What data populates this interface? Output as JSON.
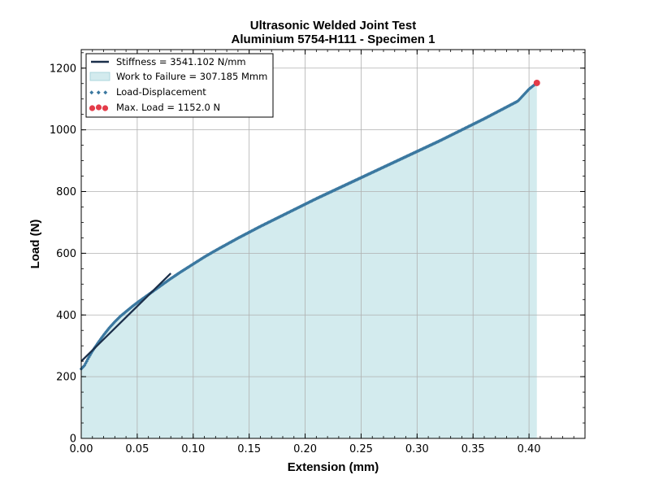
{
  "chart_data": {
    "type": "line",
    "title": "Ultrasonic Welded Joint Test",
    "subtitle": "Aluminium 5754-H111 - Specimen 1",
    "xlabel": "Extension (mm)",
    "ylabel": "Load (N)",
    "xlim": [
      0.0,
      0.45
    ],
    "ylim": [
      0,
      1260
    ],
    "xticks": [
      0.0,
      0.05,
      0.1,
      0.15,
      0.2,
      0.25,
      0.3,
      0.35,
      0.4
    ],
    "xtick_labels": [
      "0.00",
      "0.05",
      "0.10",
      "0.15",
      "0.20",
      "0.25",
      "0.30",
      "0.35",
      "0.40"
    ],
    "yticks": [
      0,
      200,
      400,
      600,
      800,
      1000,
      1200
    ],
    "ytick_labels": [
      "0",
      "200",
      "400",
      "600",
      "800",
      "1000",
      "1200"
    ],
    "grid": true,
    "legend_position": "top-left",
    "legend": [
      {
        "label": "Stiffness = 3541.102 N/mm",
        "kind": "line"
      },
      {
        "label": "Work to Failure = 307.185 Mmm",
        "kind": "area"
      },
      {
        "label": "Load-Displacement",
        "kind": "markers"
      },
      {
        "label": "Max. Load = 1152.0 N",
        "kind": "point"
      }
    ],
    "series": [
      {
        "name": "Load-Displacement",
        "x": [
          0.0,
          0.003,
          0.006,
          0.01,
          0.015,
          0.02,
          0.025,
          0.03,
          0.035,
          0.04,
          0.045,
          0.05,
          0.06,
          0.07,
          0.08,
          0.09,
          0.1,
          0.11,
          0.12,
          0.13,
          0.14,
          0.15,
          0.16,
          0.17,
          0.18,
          0.19,
          0.2,
          0.21,
          0.22,
          0.23,
          0.24,
          0.25,
          0.26,
          0.27,
          0.28,
          0.29,
          0.3,
          0.31,
          0.32,
          0.33,
          0.34,
          0.35,
          0.36,
          0.37,
          0.38,
          0.39,
          0.4,
          0.407
        ],
        "y": [
          225,
          237,
          258,
          283,
          310,
          335,
          358,
          378,
          396,
          411,
          426,
          440,
          466,
          492,
          518,
          542,
          565,
          588,
          609,
          629,
          649,
          668,
          687,
          705,
          723,
          741,
          759,
          777,
          794,
          811,
          828,
          845,
          862,
          879,
          896,
          913,
          930,
          947,
          964,
          982,
          1000,
          1018,
          1036,
          1055,
          1074,
          1093,
          1132,
          1152
        ]
      },
      {
        "name": "Stiffness",
        "x": [
          0.0,
          0.08
        ],
        "y": [
          250,
          535
        ]
      }
    ],
    "work_to_failure_area": {
      "x_end": 0.407
    },
    "max_load_point": {
      "x": 0.407,
      "y": 1152.0
    },
    "colors": {
      "data": "#3b78a0",
      "stiffness": "#1b2f4a",
      "fill": "#b5dde3",
      "max": "#e43c49",
      "grid": "#b0b0b0"
    }
  }
}
